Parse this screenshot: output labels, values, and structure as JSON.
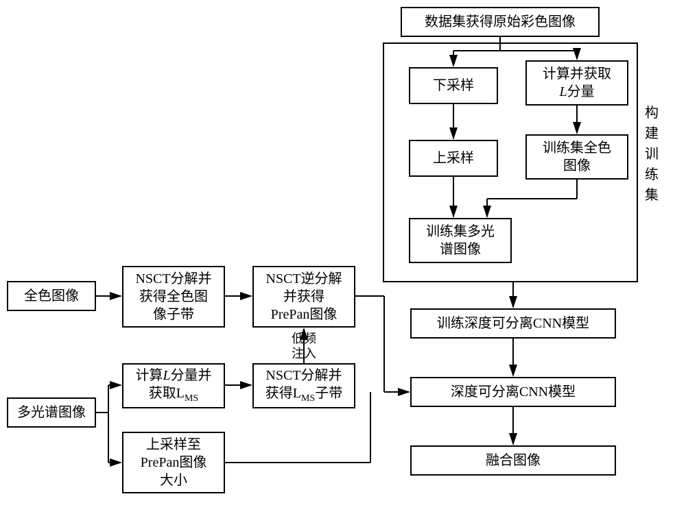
{
  "type": "flowchart",
  "colors": {
    "stroke": "#000000",
    "background": "#ffffff",
    "box_bg": "#ffffff"
  },
  "line_width": 2,
  "nodes": {
    "n_top": {
      "label": "数据集获得原始彩色图像"
    },
    "n_down": {
      "label": "下采样"
    },
    "n_calcL": {
      "label_html": "计算并获取<br><span class='it'>L</span>分量"
    },
    "n_up": {
      "label": "上采样"
    },
    "n_trainpan": {
      "label_html": "训练集全色<br>图像"
    },
    "n_trainms": {
      "label_html": "训练集多光<br>谱图像"
    },
    "n_traincnn": {
      "label": "训练深度可分离CNN模型"
    },
    "n_cnn": {
      "label": "深度可分离CNN模型"
    },
    "n_fuse": {
      "label": "融合图像"
    },
    "n_pan": {
      "label": "全色图像"
    },
    "n_nsctpan": {
      "label_html": "NSCT分解并<br>获得全色图<br>像子带"
    },
    "n_nsctinv": {
      "label_html": "NSCT逆分解<br>并获得<br>PrePan图像"
    },
    "n_ms": {
      "label": "多光谱图像"
    },
    "n_lms": {
      "label_html": "计算<span class='it'>L</span>分量并<br>获取L<span class='sub'>MS</span>"
    },
    "n_nsctlms": {
      "label_html": "NSCT分解并<br>获得L<span class='sub'>MS</span>子带"
    },
    "n_upms": {
      "label_html": "上采样至<br>PrePan图像<br>大小"
    }
  },
  "side_label": "构建训练集",
  "edge_label": "低频<br>注入"
}
